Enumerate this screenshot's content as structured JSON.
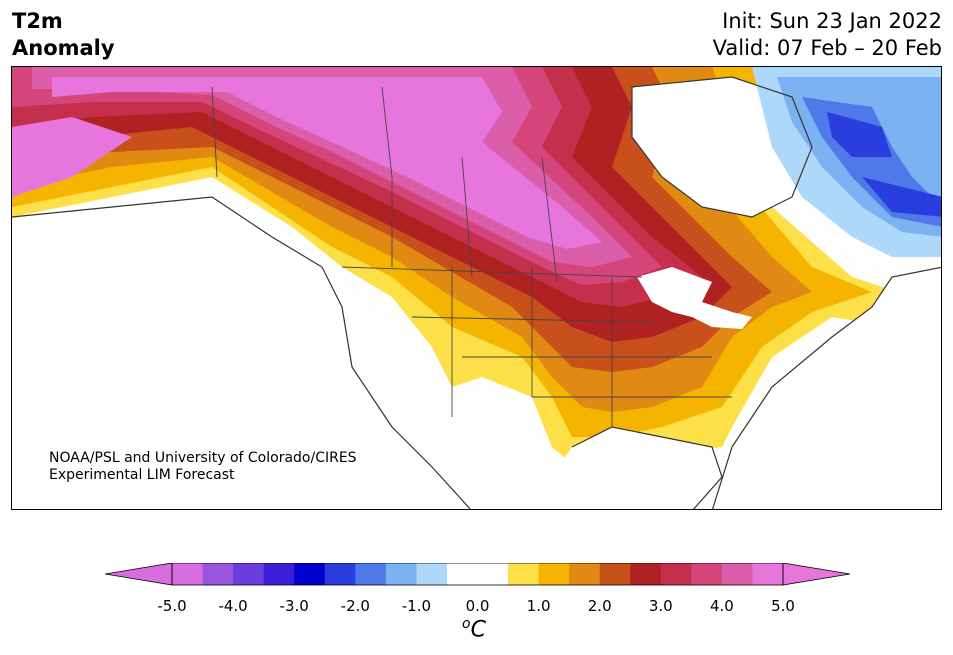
{
  "title": {
    "variable_line1": "T2m",
    "variable_line2": "Anomaly",
    "init": "Init: Sun 23 Jan 2022",
    "valid": "Valid: 07 Feb – 20 Feb"
  },
  "credit": {
    "line1": "NOAA/PSL and University of Colorado/CIRES",
    "line2": "Experimental LIM Forecast"
  },
  "colorbar": {
    "unit_main": "C",
    "unit_sup": "o",
    "ticks": [
      "-5.0",
      "-4.0",
      "-3.0",
      "-2.0",
      "-1.0",
      "0.0",
      "1.0",
      "2.0",
      "3.0",
      "4.0",
      "5.0"
    ],
    "min_color": "#d66ee0",
    "max_color": "#e676dc",
    "colors": [
      "#d66ee0",
      "#9a55e0",
      "#6a3de0",
      "#3a1ed8",
      "#0000cc",
      "#2a3ee0",
      "#4f78e8",
      "#7ab2f2",
      "#aed8fa",
      "#ffffff",
      "#ffffff",
      "#fde047",
      "#f4b400",
      "#e08a14",
      "#c8501a",
      "#b02222",
      "#c4304c",
      "#d4467a",
      "#dc5eaa",
      "#e676dc"
    ]
  },
  "palette": {
    "ocean": "#ffffff",
    "coast": "#333333",
    "neutral_land": "#fefefc",
    "strong_warm": "#e676dc",
    "cold_core": "#2a3ee0"
  }
}
